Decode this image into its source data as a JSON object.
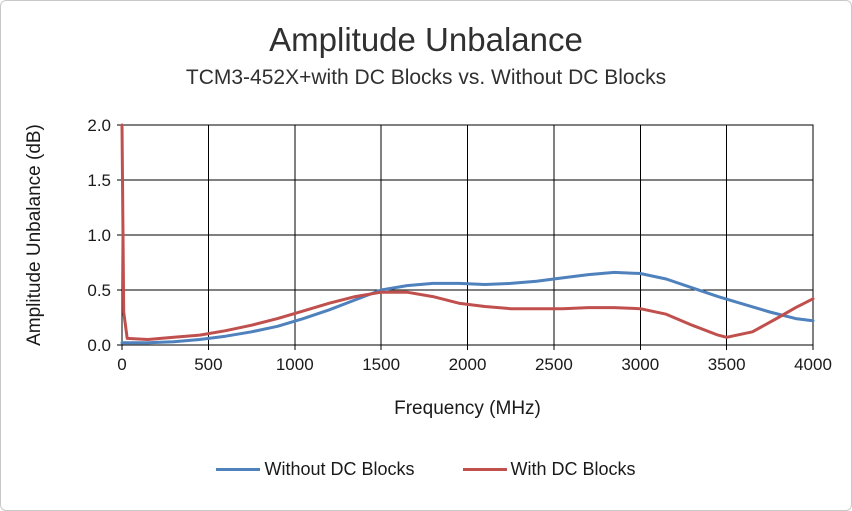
{
  "title": "Amplitude Unbalance",
  "subtitle": "TCM3-452X+with DC Blocks vs. Without DC Blocks",
  "colors": {
    "grid": "#000000",
    "axis": "#000000",
    "background": "#ffffff",
    "series_blue": "#4F81BD",
    "series_red": "#C0504D"
  },
  "chart_data": {
    "type": "line",
    "title": "Amplitude Unbalance",
    "subtitle": "TCM3-452X+with DC Blocks vs. Without DC Blocks",
    "xlabel": "Frequency (MHz)",
    "ylabel": "Amplitude Unbalance (dB)",
    "xlim": [
      0,
      4000
    ],
    "ylim": [
      0,
      2.0
    ],
    "xticks": [
      0,
      500,
      1000,
      1500,
      2000,
      2500,
      3000,
      3500,
      4000
    ],
    "xtick_labels": [
      "0",
      "500",
      "1000",
      "1500",
      "2000",
      "2500",
      "3000",
      "3500",
      "4000"
    ],
    "yticks": [
      0.0,
      0.5,
      1.0,
      1.5,
      2.0
    ],
    "ytick_labels": [
      "0.0",
      "0.5",
      "1.0",
      "1.5",
      "2.0"
    ],
    "grid": true,
    "legend_position": "bottom",
    "series": [
      {
        "name": "Without DC Blocks",
        "color": "#4F81BD",
        "x": [
          0,
          150,
          300,
          450,
          600,
          750,
          900,
          1050,
          1200,
          1350,
          1500,
          1650,
          1800,
          1950,
          2100,
          2250,
          2400,
          2550,
          2700,
          2850,
          3000,
          3150,
          3300,
          3450,
          3600,
          3750,
          3900,
          4000
        ],
        "y": [
          0.02,
          0.02,
          0.03,
          0.05,
          0.08,
          0.12,
          0.17,
          0.24,
          0.32,
          0.41,
          0.5,
          0.54,
          0.56,
          0.56,
          0.55,
          0.56,
          0.58,
          0.61,
          0.64,
          0.66,
          0.65,
          0.6,
          0.52,
          0.44,
          0.37,
          0.3,
          0.24,
          0.22
        ]
      },
      {
        "name": "With DC Blocks",
        "color": "#C0504D",
        "x": [
          0,
          10,
          30,
          150,
          300,
          450,
          600,
          750,
          900,
          1050,
          1200,
          1350,
          1500,
          1650,
          1800,
          1950,
          2100,
          2250,
          2400,
          2550,
          2700,
          2850,
          3000,
          3150,
          3300,
          3450,
          3500,
          3650,
          3800,
          3900,
          4000
        ],
        "y": [
          2.0,
          0.3,
          0.06,
          0.05,
          0.07,
          0.09,
          0.13,
          0.18,
          0.24,
          0.31,
          0.38,
          0.44,
          0.48,
          0.48,
          0.44,
          0.38,
          0.35,
          0.33,
          0.33,
          0.33,
          0.34,
          0.34,
          0.33,
          0.28,
          0.18,
          0.09,
          0.07,
          0.12,
          0.25,
          0.34,
          0.42
        ]
      }
    ]
  }
}
